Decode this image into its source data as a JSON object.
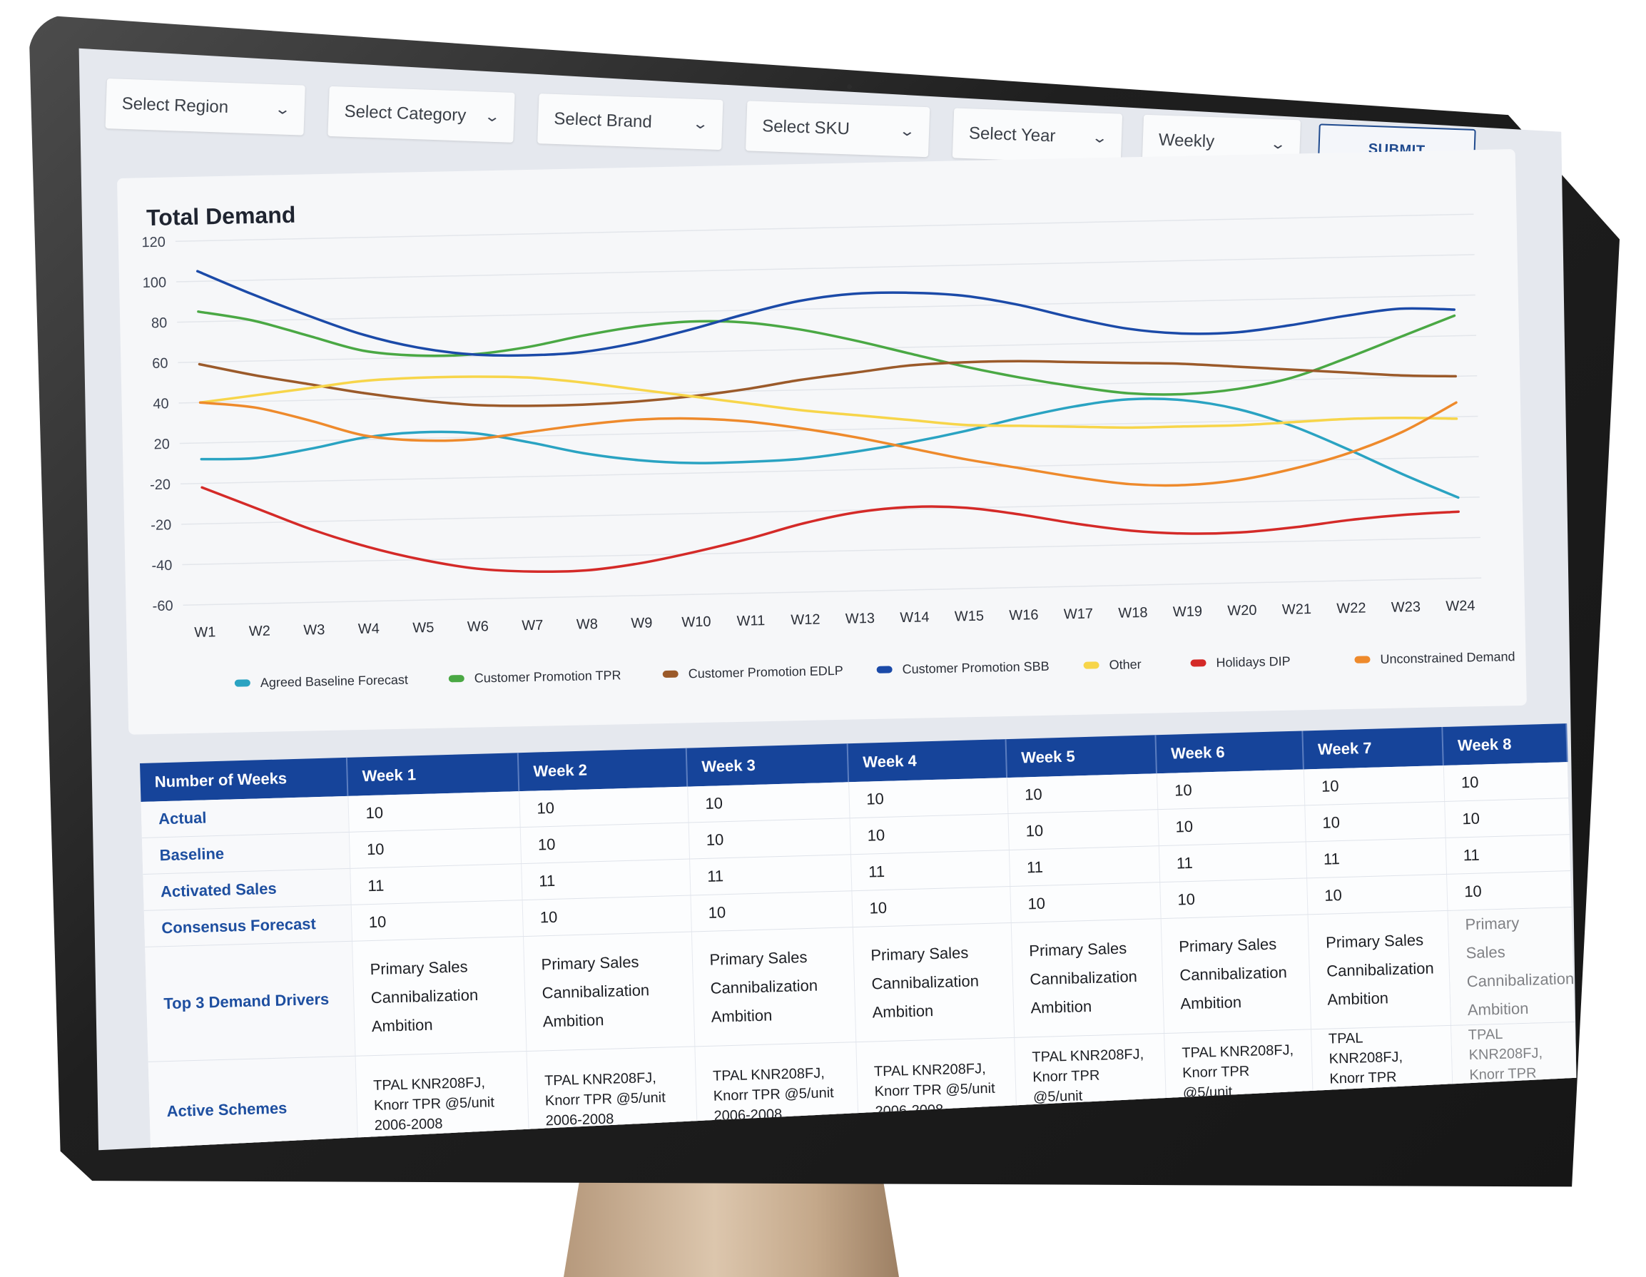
{
  "filters": {
    "region": "Select Region",
    "category": "Select Category",
    "brand": "Select Brand",
    "sku": "Select SKU",
    "year": "Select Year",
    "frequency": "Weekly",
    "submit_label": "SUBMIT"
  },
  "chart_title": "Total Demand",
  "chart_data": {
    "type": "line",
    "title": "Total Demand",
    "x": [
      "W1",
      "W2",
      "W3",
      "W4",
      "W5",
      "W6",
      "W7",
      "W8",
      "W9",
      "W10",
      "W11",
      "W12",
      "W13",
      "W14",
      "W15",
      "W16",
      "W17",
      "W18",
      "W19",
      "W20",
      "W21",
      "W22",
      "W23",
      "W24"
    ],
    "y_ticks": [
      "120",
      "100",
      "80",
      "60",
      "40",
      "20",
      "-20",
      "-20",
      "-40",
      "-60"
    ],
    "ylim": [
      -60,
      120
    ],
    "grid": true,
    "legend_position": "bottom",
    "series": [
      {
        "name": "Agreed Baseline Forecast",
        "color": "#2aa3c2",
        "values": [
          12,
          12,
          16,
          21,
          23,
          22,
          17,
          11,
          7,
          5,
          5,
          6,
          9,
          13,
          18,
          24,
          29,
          32,
          31,
          26,
          17,
          5,
          -8,
          -20
        ]
      },
      {
        "name": "Customer Promotion TPR",
        "color": "#4aa844",
        "values": [
          85,
          80,
          72,
          64,
          61,
          61,
          64,
          69,
          73,
          75,
          74,
          70,
          64,
          57,
          50,
          44,
          39,
          35,
          34,
          36,
          41,
          50,
          60,
          70
        ]
      },
      {
        "name": "Customer Promotion EDLP",
        "color": "#9b5a2a",
        "values": [
          59,
          53,
          48,
          43,
          39,
          36,
          35,
          35,
          36,
          38,
          41,
          45,
          48,
          51,
          52,
          52,
          51,
          50,
          49,
          47,
          45,
          43,
          41,
          40
        ]
      },
      {
        "name": "Customer Promotion SBB",
        "color": "#1b4aa8",
        "values": [
          105,
          93,
          82,
          72,
          65,
          61,
          60,
          61,
          65,
          71,
          78,
          84,
          87,
          87,
          85,
          80,
          73,
          67,
          64,
          64,
          67,
          71,
          74,
          73
        ]
      },
      {
        "name": "Other",
        "color": "#f7d54a",
        "values": [
          40,
          43,
          46,
          49,
          50,
          50,
          49,
          46,
          42,
          38,
          34,
          30,
          27,
          24,
          21,
          20,
          19,
          18,
          18,
          18,
          19,
          20,
          20,
          19
        ]
      },
      {
        "name": "Holidays DIP",
        "color": "#d42a28",
        "values": [
          -2,
          -13,
          -24,
          -33,
          -40,
          -45,
          -47,
          -47,
          -44,
          -39,
          -33,
          -26,
          -21,
          -19,
          -20,
          -24,
          -29,
          -33,
          -35,
          -35,
          -33,
          -30,
          -28,
          -27
        ]
      },
      {
        "name": "Unconstrained Demand",
        "color": "#ee8a2c",
        "values": [
          40,
          37,
          30,
          22,
          19,
          19,
          22,
          25,
          27,
          27,
          25,
          21,
          16,
          10,
          4,
          -1,
          -6,
          -10,
          -11,
          -9,
          -4,
          3,
          13,
          27
        ]
      }
    ]
  },
  "table": {
    "header_label": "Number of Weeks",
    "weeks": [
      "Week 1",
      "Week 2",
      "Week 3",
      "Week 4",
      "Week 5",
      "Week 6",
      "Week 7",
      "Week 8"
    ],
    "rows": [
      {
        "label": "Actual",
        "values": [
          "10",
          "10",
          "10",
          "10",
          "10",
          "10",
          "10",
          "10"
        ]
      },
      {
        "label": "Baseline",
        "values": [
          "10",
          "10",
          "10",
          "10",
          "10",
          "10",
          "10",
          "10"
        ]
      },
      {
        "label": "Activated Sales",
        "values": [
          "11",
          "11",
          "11",
          "11",
          "11",
          "11",
          "11",
          "11"
        ]
      },
      {
        "label": "Consensus Forecast",
        "values": [
          "10",
          "10",
          "10",
          "10",
          "10",
          "10",
          "10",
          "10"
        ]
      }
    ],
    "drivers_label": "Top 3 Demand Drivers",
    "drivers": [
      "Primary Sales",
      "Cannibalization",
      "Ambition"
    ],
    "schemes_label": "Active Schemes",
    "schemes": [
      "TPAL KNR208FJ,",
      "Knorr TPR @5/unit",
      "2006-2008"
    ]
  }
}
